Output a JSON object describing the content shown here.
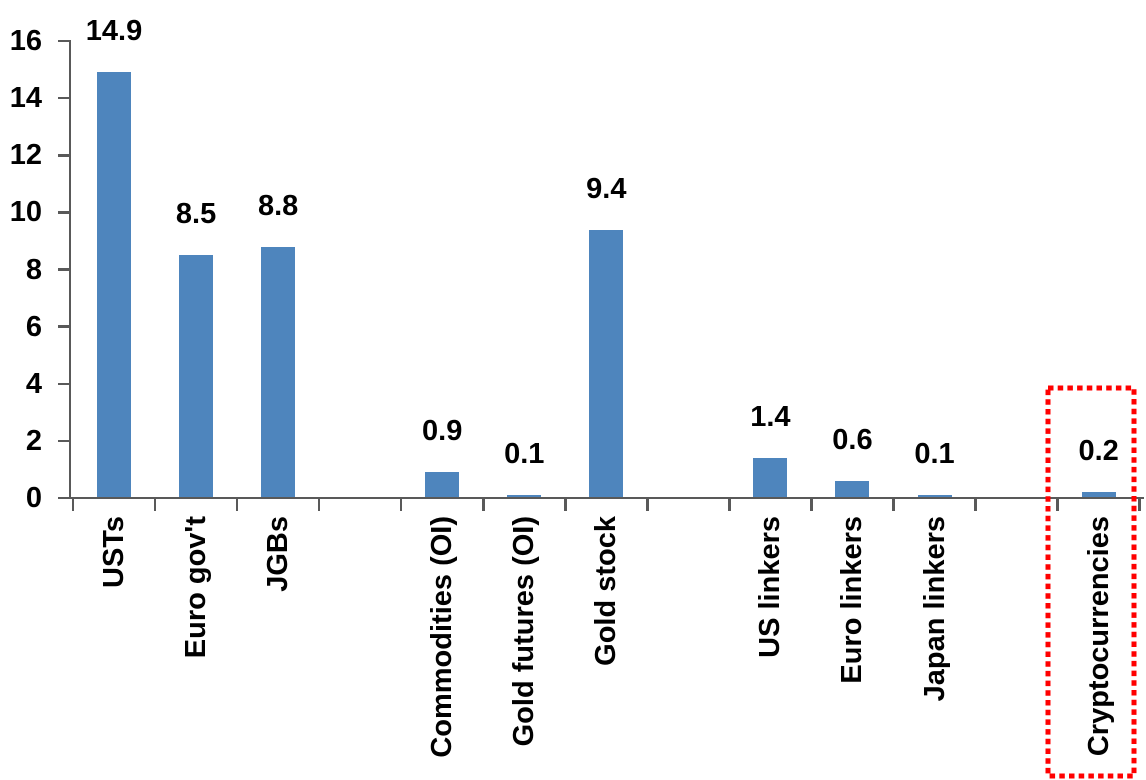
{
  "chart_data": {
    "type": "bar",
    "title": "",
    "xlabel": "",
    "ylabel": "",
    "categories": [
      "USTs",
      "Euro gov't",
      "JGBs",
      "",
      "Commodities (OI)",
      "Gold futures (OI)",
      "Gold stock",
      "",
      "US linkers",
      "Euro linkers",
      "Japan linkers",
      "",
      "Cryptocurrencies"
    ],
    "values": [
      14.9,
      8.5,
      8.8,
      null,
      0.9,
      0.1,
      9.4,
      null,
      1.4,
      0.6,
      0.1,
      null,
      0.2
    ],
    "value_labels": [
      "14.9",
      "8.5",
      "8.8",
      "",
      "0.9",
      "0.1",
      "9.4",
      "",
      "1.4",
      "0.6",
      "0.1",
      "",
      "0.2"
    ],
    "ylim": [
      0,
      16
    ],
    "yticks": [
      0,
      2,
      4,
      6,
      8,
      10,
      12,
      14,
      16
    ],
    "grid": false,
    "legend": false,
    "colors": {
      "bar": "#4E85BD",
      "axis": "#595959",
      "text": "#000000",
      "annotation": "#FF0000"
    },
    "annotation": {
      "type": "dotted-box",
      "around_category": "Cryptocurrencies",
      "color": "#FF0000"
    }
  }
}
